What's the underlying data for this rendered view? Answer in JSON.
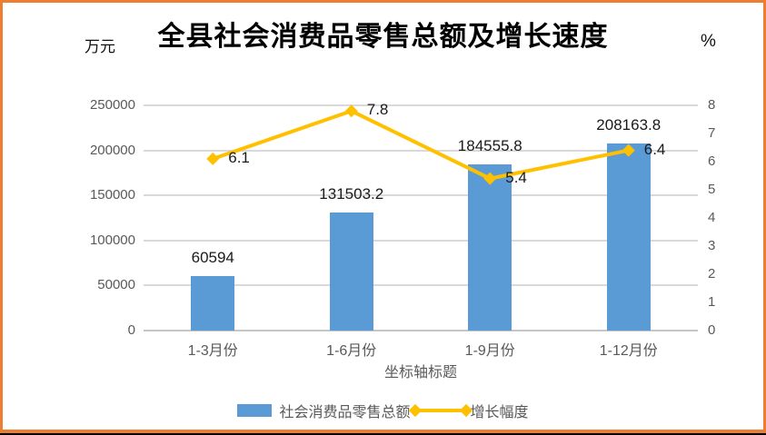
{
  "frame": {
    "border_color": "#ED7D31",
    "bottom_line_color": "#000000"
  },
  "chart_data": {
    "type": "bar+line combo",
    "title": "全县社会消费品零售总额及增长速度",
    "xlabel": "坐标轴标题",
    "categories": [
      "1-3月份",
      "1-6月份",
      "1-9月份",
      "1-12月份"
    ],
    "left_axis": {
      "unit": "万元",
      "min": 0,
      "max": 250000,
      "step": 50000,
      "ticks": [
        "0",
        "50000",
        "100000",
        "150000",
        "200000",
        "250000"
      ]
    },
    "right_axis": {
      "unit": "%",
      "min": 0,
      "max": 8,
      "step": 1,
      "ticks": [
        "0",
        "1",
        "2",
        "3",
        "4",
        "5",
        "6",
        "7",
        "8"
      ]
    },
    "series": [
      {
        "name": "社会消费品零售总额",
        "type": "bar",
        "color": "#5B9BD5",
        "axis": "left",
        "values": [
          60594,
          131503.2,
          184555.8,
          208163.8
        ],
        "labels": [
          "60594",
          "131503.2",
          "184555.8",
          "208163.8"
        ]
      },
      {
        "name": "增长幅度",
        "type": "line",
        "color": "#FFC000",
        "axis": "right",
        "values": [
          6.1,
          7.8,
          5.4,
          6.4
        ],
        "labels": [
          "6.1",
          "7.8",
          "5.4",
          "6.4"
        ]
      }
    ],
    "grid": true,
    "grid_color": "#D9D9D9",
    "legend_position": "bottom",
    "tick_text_color": "#595959",
    "data_label_color": "#1a1a1a"
  }
}
